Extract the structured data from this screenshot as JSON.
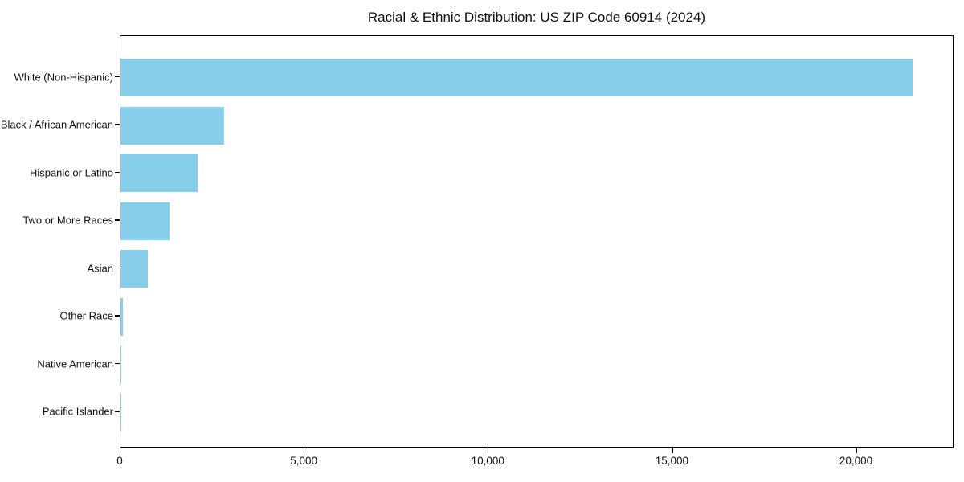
{
  "title": "Racial & Ethnic Distribution: US ZIP Code 60914 (2024)",
  "chart_data": {
    "type": "bar",
    "orientation": "horizontal",
    "title": "Racial & Ethnic Distribution: US ZIP Code 60914 (2024)",
    "categories": [
      "White (Non-Hispanic)",
      "Black / African American",
      "Hispanic or Latino",
      "Two or More Races",
      "Asian",
      "Other Race",
      "Native American",
      "Pacific Islander"
    ],
    "values": [
      21550,
      2820,
      2100,
      1330,
      740,
      60,
      20,
      5
    ],
    "xlabel": "",
    "ylabel": "",
    "xlim": [
      0,
      22650
    ],
    "x_ticks": [
      0,
      5000,
      10000,
      15000,
      20000
    ],
    "x_tick_labels": [
      "0",
      "5,000",
      "10,000",
      "15,000",
      "20,000"
    ],
    "bar_color": "#87CEEB",
    "axis_color": "#000000",
    "text_color": "#111111",
    "grid": false,
    "legend": null
  }
}
